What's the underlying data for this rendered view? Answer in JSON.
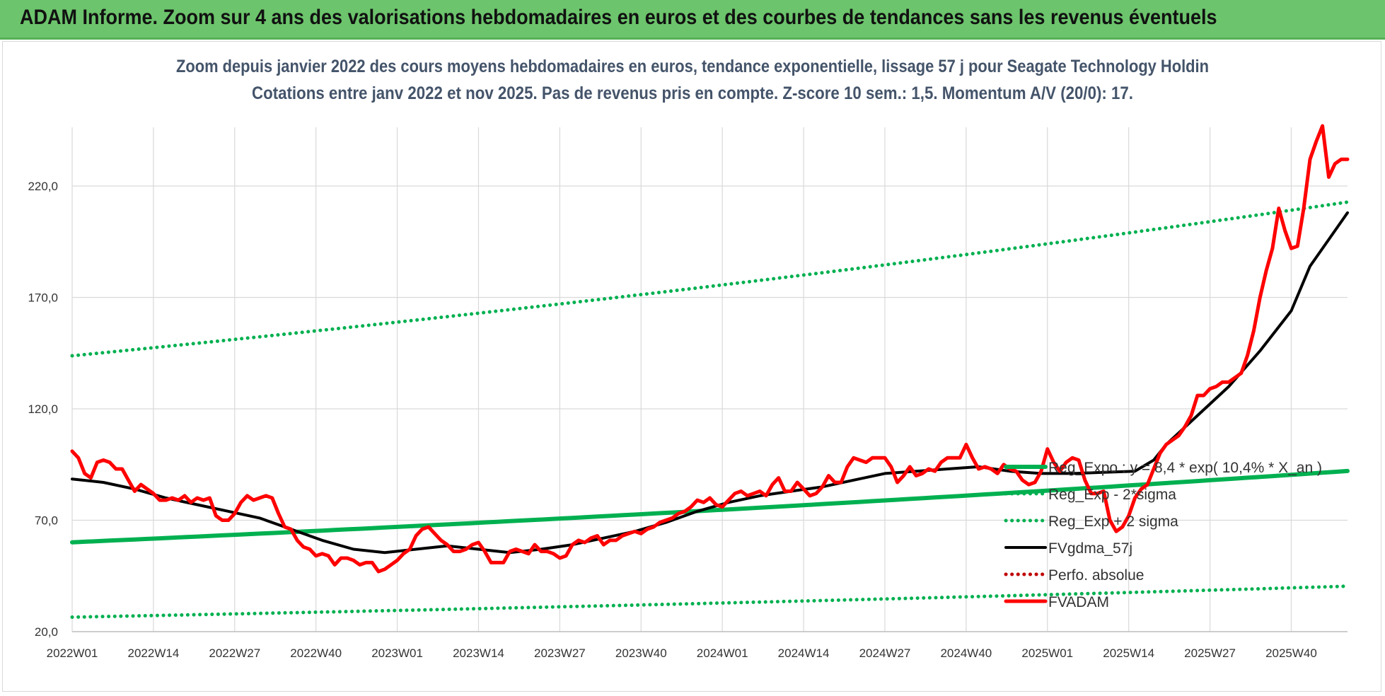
{
  "banner": {
    "title": "ADAM Informe. Zoom sur 4 ans des valorisations hebdomadaires en euros et des courbes de tendances sans les revenus éventuels"
  },
  "colors": {
    "banner_bg": "#6cc46c",
    "trend_green": "#00b050",
    "price_red": "#ff0000",
    "smooth_black": "#000000",
    "title_text": "#44546a",
    "grid": "#d9d9d9"
  },
  "chart_data": {
    "type": "line",
    "title_line1": "Zoom depuis janvier 2022 des cours moyens hebdomadaires en euros, tendance exponentielle, lissage 57 j pour Seagate Technology Holdin",
    "title_line2": "Cotations entre janv 2022 et nov 2025. Pas de revenus pris en compte. Z-score 10 sem.: 1,5. Momentum A/V (20/0): 17.",
    "xlabel": "",
    "ylabel": "",
    "ylim": [
      20,
      240
    ],
    "y_ticks": [
      20,
      70,
      120,
      170,
      220
    ],
    "y_tick_labels": [
      "20,0",
      "70,0",
      "120,0",
      "170,0",
      "220,0"
    ],
    "x_ticks": [
      0,
      13,
      26,
      39,
      52,
      65,
      78,
      91,
      104,
      117,
      130,
      143,
      156,
      169,
      182,
      195
    ],
    "x_tick_labels": [
      "2022W01",
      "2022W14",
      "2022W27",
      "2022W40",
      "2023W01",
      "2023W14",
      "2023W27",
      "2023W40",
      "2024W01",
      "2024W14",
      "2024W27",
      "2024W40",
      "2025W01",
      "2025W14",
      "2025W27",
      "2025W40"
    ],
    "x_range": [
      0,
      204
    ],
    "grid": true,
    "legend_position": "bottom-right",
    "series": [
      {
        "name": "Reg_Expo : y = 8,4 * exp( 10,4% * X_an )",
        "style": "solid-thick",
        "color": "#00b050",
        "x": [
          0,
          204
        ],
        "values": [
          60.1,
          92.1
        ],
        "curve": "exponential"
      },
      {
        "name": "Reg_Exp - 2*sigma",
        "style": "dotted",
        "color": "#00b050",
        "x": [
          0,
          204
        ],
        "values": [
          26.5,
          40.4
        ],
        "curve": "exponential"
      },
      {
        "name": "Reg_Exp + 2 sigma",
        "style": "dotted",
        "color": "#00b050",
        "x": [
          0,
          204
        ],
        "values": [
          143.8,
          212.8
        ],
        "curve": "exponential"
      },
      {
        "name": "FVgdma_57j",
        "style": "solid",
        "color": "#000000",
        "x": [
          0,
          5,
          10,
          15,
          20,
          25,
          30,
          35,
          40,
          45,
          50,
          55,
          60,
          65,
          70,
          75,
          80,
          85,
          90,
          95,
          100,
          105,
          110,
          115,
          120,
          125,
          130,
          135,
          140,
          145,
          150,
          155,
          160,
          165,
          170,
          173,
          175,
          180,
          185,
          190,
          195,
          198,
          201,
          203,
          204
        ],
        "values": [
          88.5,
          87,
          84,
          80,
          77,
          74,
          71,
          66,
          61,
          57,
          55.5,
          57,
          58.5,
          57,
          55.5,
          57,
          59,
          62,
          65,
          69,
          74,
          78,
          81,
          83,
          85,
          88,
          91,
          92,
          93,
          94,
          92,
          91,
          91,
          91.5,
          92,
          97,
          104,
          117,
          130,
          146,
          164,
          184,
          196,
          204,
          208
        ]
      },
      {
        "name": "Perfo. absolue",
        "style": "dotted",
        "color": "#c00000",
        "x": [],
        "values": []
      },
      {
        "name": "FVADAM",
        "style": "solid-thick",
        "color": "#ff0000",
        "x": [
          0,
          1,
          2,
          3,
          4,
          5,
          6,
          7,
          8,
          9,
          10,
          11,
          12,
          13,
          14,
          15,
          16,
          17,
          18,
          19,
          20,
          21,
          22,
          23,
          24,
          25,
          26,
          27,
          28,
          29,
          30,
          31,
          32,
          33,
          34,
          35,
          36,
          37,
          38,
          39,
          40,
          41,
          42,
          43,
          44,
          45,
          46,
          47,
          48,
          49,
          50,
          51,
          52,
          53,
          54,
          55,
          56,
          57,
          58,
          59,
          60,
          61,
          62,
          63,
          64,
          65,
          66,
          67,
          68,
          69,
          70,
          71,
          72,
          73,
          74,
          75,
          76,
          77,
          78,
          79,
          80,
          81,
          82,
          83,
          84,
          85,
          86,
          87,
          88,
          89,
          90,
          91,
          92,
          93,
          94,
          95,
          96,
          97,
          98,
          99,
          100,
          101,
          102,
          103,
          104,
          105,
          106,
          107,
          108,
          109,
          110,
          111,
          112,
          113,
          114,
          115,
          116,
          117,
          118,
          119,
          120,
          121,
          122,
          123,
          124,
          125,
          126,
          127,
          128,
          129,
          130,
          131,
          132,
          133,
          134,
          135,
          136,
          137,
          138,
          139,
          140,
          141,
          142,
          143,
          144,
          145,
          146,
          147,
          148,
          149,
          150,
          151,
          152,
          153,
          154,
          155,
          156,
          157,
          158,
          159,
          160,
          161,
          162,
          163,
          164,
          165,
          166,
          167,
          168,
          169,
          170,
          171,
          172,
          173,
          174,
          175,
          176,
          177,
          178,
          179,
          180,
          181,
          182,
          183,
          184,
          185,
          186,
          187,
          188,
          189,
          190,
          191,
          192,
          193,
          194,
          195,
          196,
          197,
          198,
          199,
          200,
          201,
          202,
          203,
          204
        ],
        "values": [
          101,
          98,
          91,
          89,
          96,
          97,
          96,
          93,
          93,
          88,
          83,
          86,
          84,
          82,
          79,
          79,
          80,
          79,
          81,
          78,
          80,
          79,
          80,
          72,
          70,
          70,
          73,
          78,
          81,
          79,
          80,
          81,
          80,
          73,
          67,
          66,
          61,
          58,
          57,
          54,
          55,
          54,
          50,
          53,
          53,
          52,
          50,
          51,
          51,
          47,
          48,
          50,
          52,
          55,
          57,
          63,
          66,
          67,
          64,
          61,
          59,
          56,
          56,
          57,
          59,
          60,
          56,
          51,
          51,
          51,
          56,
          57,
          56,
          55,
          59,
          56,
          56,
          55,
          53,
          54,
          59,
          61,
          60,
          62,
          63,
          59,
          61,
          61,
          63,
          64,
          65,
          64,
          66,
          67,
          69,
          70,
          71,
          73,
          74,
          76,
          79,
          78,
          80,
          77,
          76,
          79,
          82,
          83,
          81,
          82,
          83,
          81,
          86,
          89,
          83,
          83,
          87,
          84,
          81,
          82,
          85,
          90,
          87,
          87,
          94,
          98,
          97,
          96,
          98,
          98,
          98,
          94,
          87,
          90,
          94,
          90,
          91,
          93,
          92,
          96,
          98,
          98,
          98,
          104,
          98,
          93,
          94,
          93,
          91,
          95,
          93,
          92,
          88,
          86,
          87,
          92,
          102,
          96,
          92,
          96,
          98,
          97,
          88,
          82,
          82,
          83,
          70,
          65,
          67,
          72,
          80,
          84,
          86,
          93,
          100,
          104,
          106,
          108,
          112,
          117,
          126,
          126,
          129,
          130,
          132,
          132,
          134,
          136,
          144,
          155,
          170,
          182,
          192,
          210,
          200,
          192,
          193,
          210,
          232,
          240,
          247,
          224,
          230,
          232,
          232
        ]
      }
    ]
  }
}
